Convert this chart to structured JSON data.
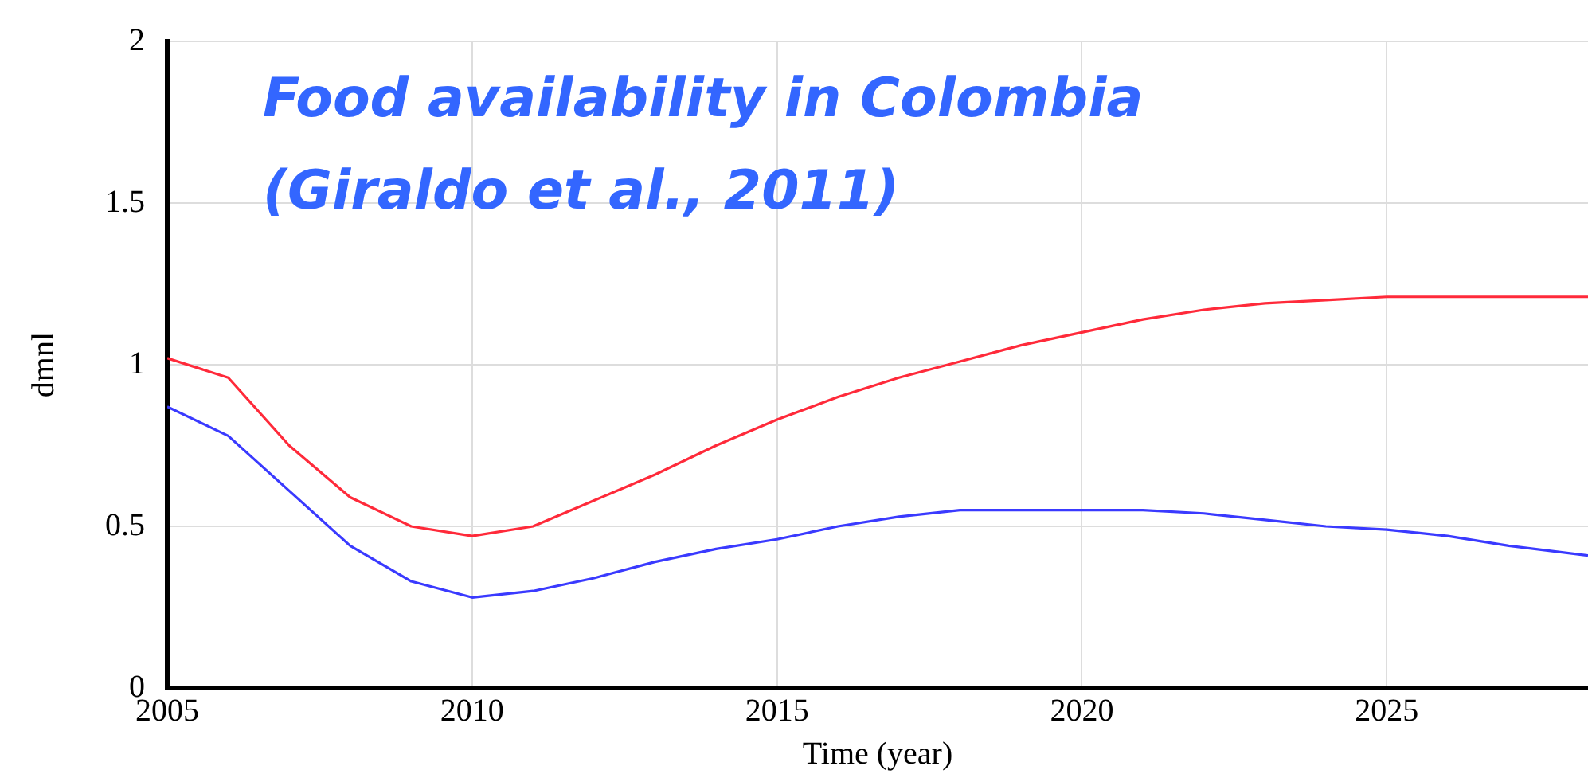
{
  "chart_data": {
    "type": "line",
    "title": "Food availability in Colombia (Giraldo et al., 2011)",
    "xlabel": "Time (year)",
    "ylabel": "dmnl",
    "x": [
      2005,
      2006,
      2007,
      2008,
      2009,
      2010,
      2011,
      2012,
      2013,
      2014,
      2015,
      2016,
      2017,
      2018,
      2019,
      2020,
      2021,
      2022,
      2023,
      2024,
      2025,
      2026,
      2027,
      2028.3
    ],
    "series": [
      {
        "color": "#ff2a3a",
        "values": [
          1.02,
          0.96,
          0.75,
          0.59,
          0.5,
          0.47,
          0.5,
          0.58,
          0.66,
          0.75,
          0.83,
          0.9,
          0.96,
          1.01,
          1.06,
          1.1,
          1.14,
          1.17,
          1.19,
          1.2,
          1.21,
          1.21,
          1.21,
          1.21
        ]
      },
      {
        "color": "#3a3aff",
        "values": [
          0.87,
          0.78,
          0.61,
          0.44,
          0.33,
          0.28,
          0.3,
          0.34,
          0.39,
          0.43,
          0.46,
          0.5,
          0.53,
          0.55,
          0.55,
          0.55,
          0.55,
          0.54,
          0.52,
          0.5,
          0.49,
          0.47,
          0.44,
          0.41
        ]
      }
    ],
    "xlim": [
      2005,
      2028.3
    ],
    "xticks": [
      2005,
      2010,
      2015,
      2020,
      2025
    ],
    "ylim": [
      0,
      2
    ],
    "yticks": [
      0,
      0.5,
      1,
      1.5,
      2
    ],
    "grid": true,
    "legend": false,
    "marker": "none",
    "line_style": "solid"
  }
}
